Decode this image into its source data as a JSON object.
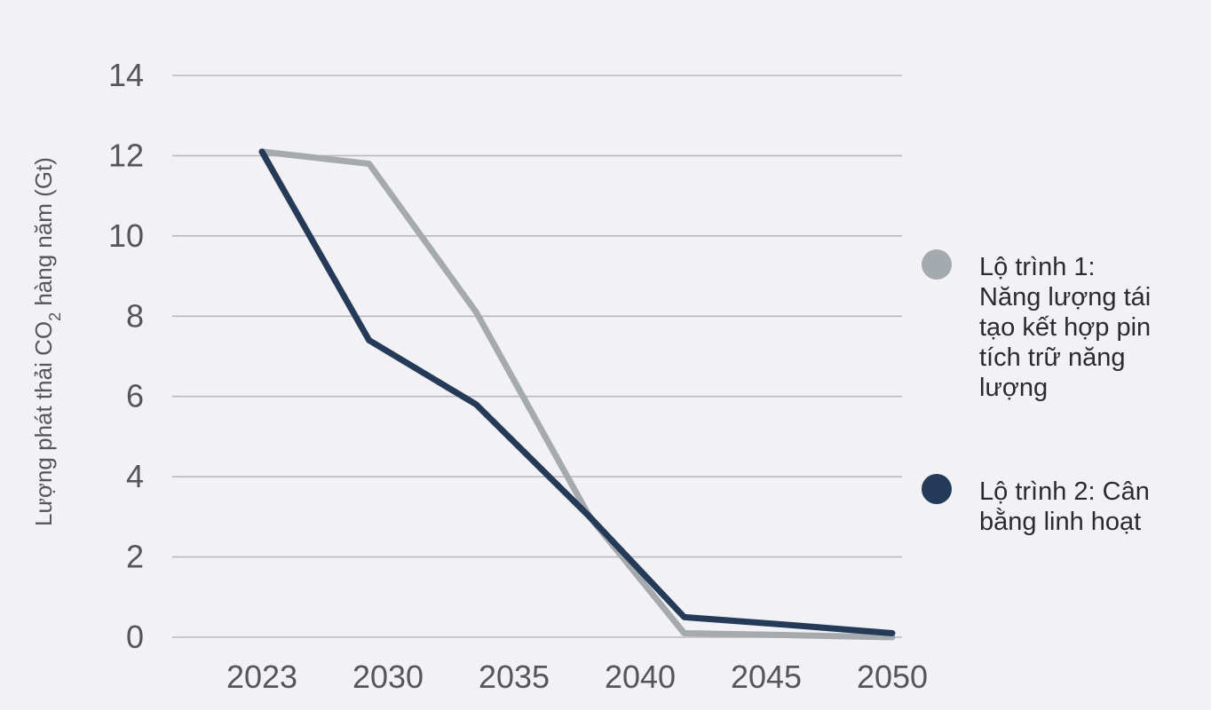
{
  "chart_data": {
    "type": "line",
    "ylabel": "Lượng phát thải CO₂ hàng năm (Gt)",
    "ylabel_parts": {
      "before": "Lượng phát thải CO",
      "sub": "2",
      "after": " hàng năm (Gt)"
    },
    "xlabel": "",
    "x_ticks": [
      "2023",
      "2030",
      "2035",
      "2040",
      "2045",
      "2050"
    ],
    "y_ticks": [
      0,
      2,
      4,
      6,
      8,
      10,
      12,
      14
    ],
    "ylim": [
      0,
      14
    ],
    "grid": true,
    "legend_position": "right",
    "series": [
      {
        "name_lines": [
          "Lộ trình 1:",
          "Năng lượng tái",
          "tạo kết hợp pin",
          "tích trữ năng",
          "lượng"
        ],
        "color": "#a5aaae",
        "points": [
          [
            0,
            12.1
          ],
          [
            0.85,
            11.8
          ],
          [
            1.7,
            8.1
          ],
          [
            2.6,
            3.0
          ],
          [
            3.35,
            0.1
          ],
          [
            4.2,
            0.05
          ],
          [
            5.0,
            0.0
          ]
        ]
      },
      {
        "name_lines": [
          "Lộ trình 2: Cân",
          "bằng linh hoạt"
        ],
        "color": "#233b58",
        "points": [
          [
            0,
            12.1
          ],
          [
            0.85,
            7.4
          ],
          [
            1.7,
            5.8
          ],
          [
            2.6,
            3.0
          ],
          [
            3.35,
            0.5
          ],
          [
            4.2,
            0.3
          ],
          [
            5.0,
            0.1
          ]
        ]
      }
    ]
  }
}
